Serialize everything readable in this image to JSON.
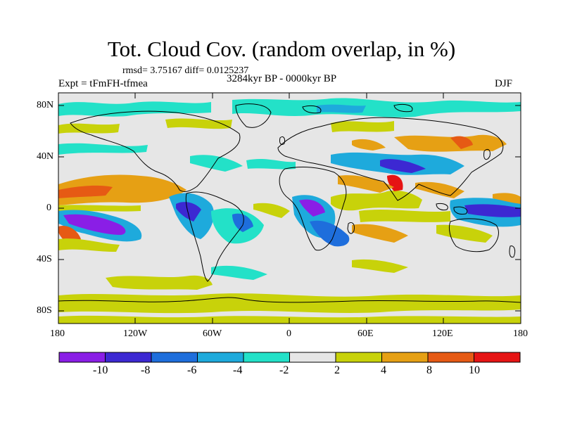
{
  "title": "Tot. Cloud Cov. (random overlap, in %)",
  "stats": "rmsd= 3.75167  diff= 0.0125237",
  "expt": "Expt = tFmFH-tfmea",
  "period": "3284kyr BP - 0000kyr BP",
  "season": "DJF",
  "lat_labels": [
    "80N",
    "40N",
    "0",
    "40S",
    "80S"
  ],
  "lon_labels": [
    "180",
    "120W",
    "60W",
    "0",
    "60E",
    "120E",
    "180"
  ],
  "colorbar": {
    "colors": [
      "#8a1ee6",
      "#3c28d2",
      "#1e6edc",
      "#1eaadc",
      "#23e1c8",
      "#e6e6e6",
      "#c8d20a",
      "#e6a014",
      "#e65a14",
      "#e61414"
    ],
    "labels": [
      "-10",
      "-8",
      "-6",
      "-4",
      "-2",
      "2",
      "4",
      "8",
      "10"
    ]
  },
  "map_colors": {
    "neutral": "#e6e6e6",
    "yellow": "#c8d20a",
    "orange": "#e6a014",
    "red": "#e61414",
    "dark_orange": "#e65a14",
    "teal": "#23e1c8",
    "cyan": "#1eaadc",
    "blue": "#1e6edc",
    "indigo": "#3c28d2",
    "purple": "#8a1ee6"
  }
}
